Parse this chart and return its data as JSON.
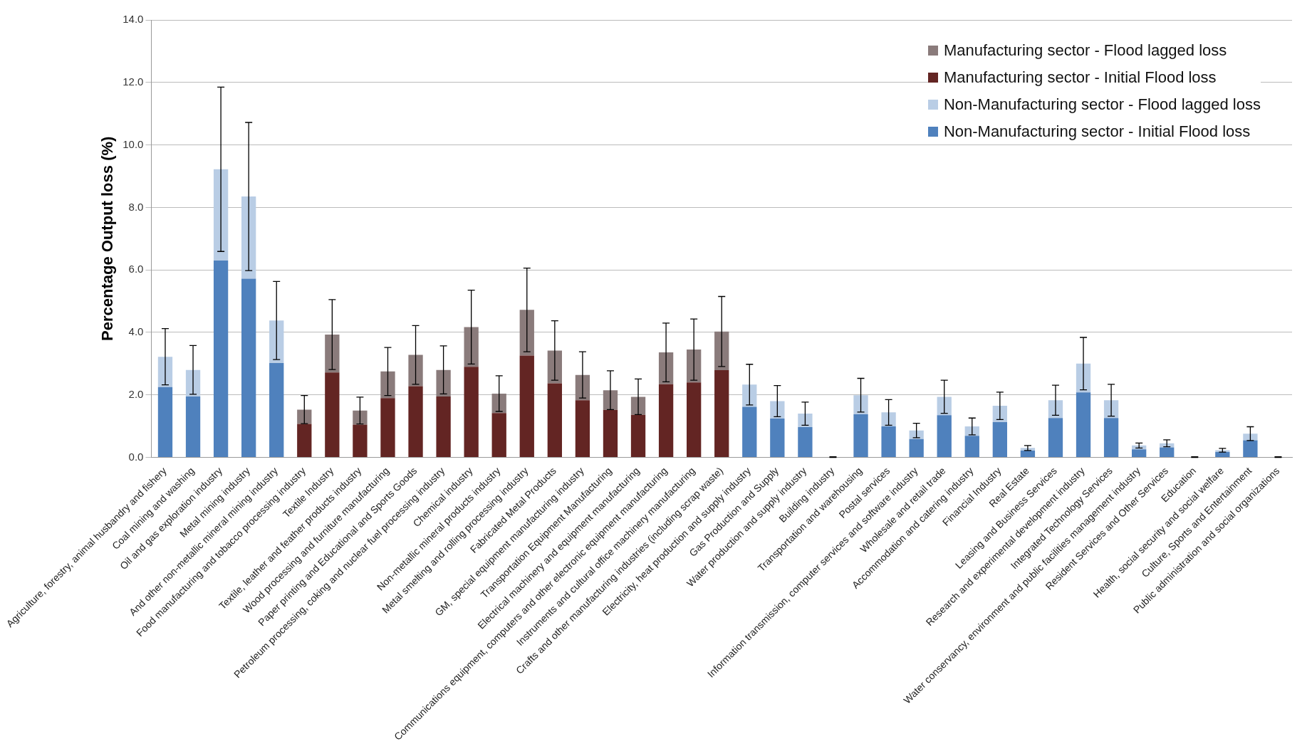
{
  "chart_data": {
    "type": "bar",
    "stacked": true,
    "ylabel": "Percentage Output loss (%)",
    "categories": [
      "Agriculture, forestry, animal husbandry and fishery",
      "Coal mining and washing",
      "Oil and gas exploration industry",
      "Metal mining industry",
      "And other non-metallic mineral mining industry",
      "Food manufacturing and tobacco processing industry",
      "Textile Industry",
      "Textile, leather and feather products industry",
      "Wood processing and furniture manufacturing",
      "Paper printing and Educational and Sports Goods",
      "Petroleum processing, coking and nuclear fuel processing industry",
      "Chemical industry",
      "Non-metallic mineral products industry",
      "Metal smelting and rolling processing industry",
      "Fabricated Metal Products",
      "GM, special equipment manufacturing industry",
      "Transportation Equipment Manufacturing",
      "Electrical machinery and equipment manufacturing",
      "Communications equipment, computers and other electronic equipment manufacturing",
      "Instruments and cultural office machinery manufacturing",
      "Crafts and other manufacturing industries (including scrap waste)",
      "Electricity, heat production and supply industry",
      "Gas Production and Supply",
      "Water production and supply industry",
      "Building industry",
      "Transportation and warehousing",
      "Postal services",
      "Information transmission, computer services and software industry",
      "Wholesale and retail trade",
      "Accommodation and catering industry",
      "Financial Industry",
      "Real Estate",
      "Leasing and Business Services",
      "Research and experimental development industry",
      "Integrated Technology Services",
      "Water conservancy, environment and public facilities management industry",
      "Resident Services and Other Services",
      "Education",
      "Health, social security and social welfare",
      "Culture, Sports and Entertainment",
      "Public administration and social organizations"
    ],
    "series": [
      {
        "name": "Non-Manufacturing sector - Initial Flood loss",
        "color": "#4f81bd",
        "values": [
          2.25,
          1.95,
          6.3,
          5.72,
          3.02,
          null,
          null,
          null,
          null,
          null,
          null,
          null,
          null,
          null,
          null,
          null,
          null,
          null,
          null,
          null,
          null,
          1.62,
          1.24,
          0.97,
          null,
          1.38,
          0.99,
          0.59,
          1.35,
          0.69,
          1.13,
          0.22,
          1.26,
          2.08,
          1.26,
          0.26,
          0.32,
          null,
          0.17,
          0.55,
          null
        ]
      },
      {
        "name": "Non-Manufacturing sector - Flood lagged loss",
        "color": "#b9cde5",
        "values": [
          0.97,
          0.85,
          2.92,
          2.63,
          1.36,
          null,
          null,
          null,
          null,
          null,
          null,
          null,
          null,
          null,
          null,
          null,
          null,
          null,
          null,
          null,
          null,
          0.71,
          0.56,
          0.43,
          0.01,
          0.61,
          0.45,
          0.27,
          0.59,
          0.3,
          0.52,
          0.08,
          0.57,
          0.92,
          0.57,
          0.12,
          0.13,
          0.01,
          0.06,
          0.21,
          0.01
        ],
        "errors": [
          0.9,
          0.78,
          2.63,
          2.37,
          1.25,
          null,
          null,
          null,
          null,
          null,
          null,
          null,
          null,
          null,
          null,
          null,
          null,
          null,
          null,
          null,
          null,
          0.65,
          0.5,
          0.37,
          0.01,
          0.54,
          0.41,
          0.23,
          0.53,
          0.27,
          0.44,
          0.08,
          0.48,
          0.84,
          0.51,
          0.08,
          0.11,
          0.01,
          0.06,
          0.22,
          0.01
        ]
      },
      {
        "name": "Manufacturing sector - Initial Flood loss",
        "color": "#632523",
        "values": [
          null,
          null,
          null,
          null,
          null,
          1.07,
          2.72,
          1.05,
          1.9,
          2.28,
          1.95,
          2.9,
          1.42,
          3.26,
          2.37,
          1.83,
          1.52,
          1.36,
          2.34,
          2.4,
          2.79,
          null,
          null,
          null,
          null,
          null,
          null,
          null,
          null,
          null,
          null,
          null,
          null,
          null,
          null,
          null,
          null,
          null,
          null,
          null,
          null
        ]
      },
      {
        "name": "Manufacturing sector - Flood lagged loss",
        "color": "#8a7b7b",
        "values": [
          null,
          null,
          null,
          null,
          null,
          0.46,
          1.21,
          0.45,
          0.85,
          1.0,
          0.85,
          1.27,
          0.62,
          1.46,
          1.05,
          0.81,
          0.63,
          0.58,
          1.02,
          1.05,
          1.24,
          null,
          null,
          null,
          null,
          null,
          null,
          null,
          null,
          null,
          null,
          null,
          null,
          null,
          null,
          null,
          null,
          null,
          null,
          null,
          null
        ],
        "errors": [
          null,
          null,
          null,
          null,
          null,
          0.45,
          1.12,
          0.43,
          0.77,
          0.94,
          0.77,
          1.18,
          0.57,
          1.34,
          0.95,
          0.74,
          0.62,
          0.57,
          0.94,
          0.98,
          1.12,
          null,
          null,
          null,
          null,
          null,
          null,
          null,
          null,
          null,
          null,
          null,
          null,
          null,
          null,
          null,
          null,
          null,
          null,
          null,
          null
        ]
      }
    ],
    "ylim": [
      0,
      14
    ],
    "yticks": [
      {
        "value": 0,
        "label": "0.0"
      },
      {
        "value": 2,
        "label": "2.0"
      },
      {
        "value": 4,
        "label": "4.0"
      },
      {
        "value": 6,
        "label": "6.0"
      },
      {
        "value": 8,
        "label": "8.0"
      },
      {
        "value": 10,
        "label": "10.0"
      },
      {
        "value": 12,
        "label": "12.0"
      },
      {
        "value": 14,
        "label": "14.0"
      }
    ],
    "grid": "y",
    "legend": "top right"
  }
}
